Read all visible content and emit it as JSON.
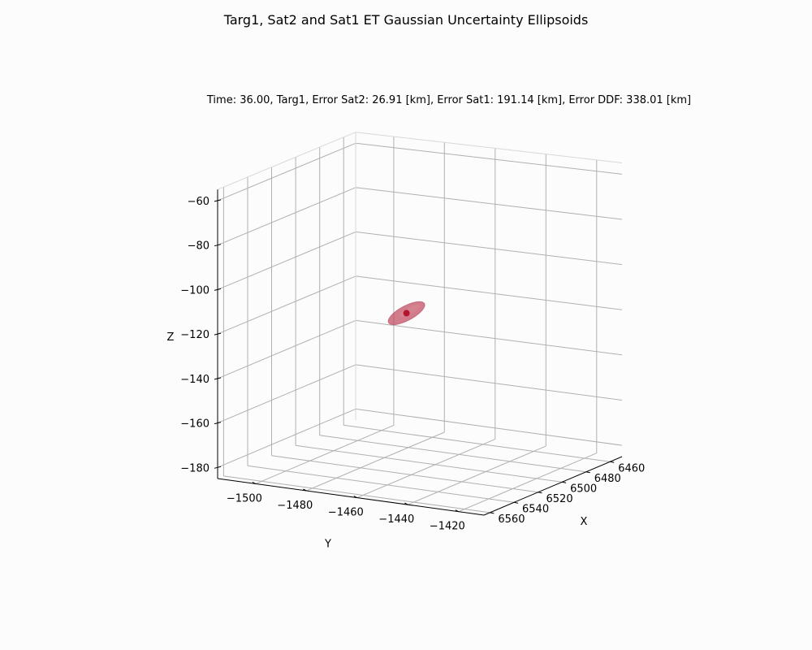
{
  "chart_data": {
    "type": "scatter",
    "projection": "3d",
    "title": "Targ1, Sat2 and Sat1 ET Gaussian Uncertainty Ellipsoids",
    "subtitle": "Time: 36.00, Targ1, Error Sat2: 26.91 [km], Error Sat1: 191.14 [km], Error DDF: 338.01 [km]",
    "xlabel": "X",
    "ylabel": "Y",
    "zlabel": "Z",
    "xlim": [
      6450,
      6565
    ],
    "ylim": [
      -1515,
      -1410
    ],
    "zlim": [
      -185,
      -55
    ],
    "xticks": [
      6460,
      6480,
      6500,
      6520,
      6540,
      6560
    ],
    "yticks": [
      -1500,
      -1480,
      -1460,
      -1440,
      -1420
    ],
    "zticks": [
      -60,
      -80,
      -100,
      -120,
      -140,
      -160,
      -180
    ],
    "xtick_labels": [
      "6460",
      "6480",
      "6500",
      "6520",
      "6540",
      "6560"
    ],
    "ytick_labels": [
      "−1500",
      "−1480",
      "−1460",
      "−1440",
      "−1420"
    ],
    "ztick_labels": [
      "−60",
      "−80",
      "−100",
      "−120",
      "−140",
      "−160",
      "−180"
    ],
    "grid": true,
    "legend": "none",
    "series": [
      {
        "marker": "point",
        "color": "#b5142e",
        "points": [
          {
            "x": 6507,
            "y": -1468,
            "z": -117
          }
        ]
      },
      {
        "marker": "ellipsoid",
        "color": "#c04a60",
        "center": {
          "x": 6507,
          "y": -1468,
          "z": -117
        }
      }
    ]
  },
  "colors": {
    "background": "#fcfcfc",
    "grid": "#b0b0b0",
    "axis": "#000000",
    "point": "#b5142e",
    "ellipsoid": "#c04a60"
  }
}
